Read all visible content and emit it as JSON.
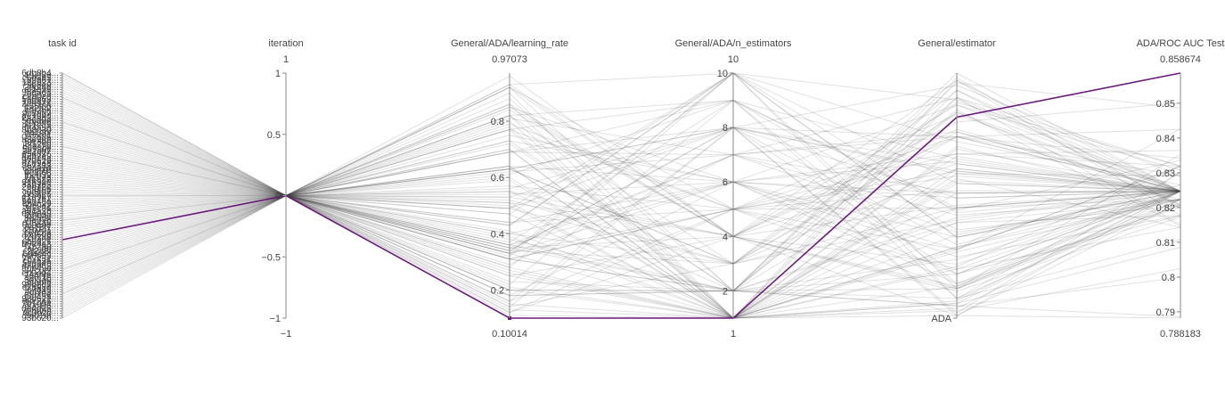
{
  "colors": {
    "highlight": "#6a1b7a",
    "line": "#444444"
  },
  "chart_data": {
    "type": "parallel_coordinates",
    "title": "",
    "axes": [
      {
        "key": "task_id",
        "label": "task id",
        "type": "categorical",
        "ticks": [
          "6db8b4...",
          "197f89...",
          "c5d8a5...",
          "8ffa81...",
          "17e923...",
          "79e5e0...",
          "29df4d...",
          "af1e98...",
          "98d3e1...",
          "0f7f99...",
          "c2a0cd...",
          "530b69...",
          "1b0a7e...",
          "2e8124...",
          "e55f85...",
          "6a2a4f...",
          "49f2ba...",
          "9c38d7...",
          "ae1d4d...",
          "2a3ad3...",
          "5e6a8e...",
          "19e9fd...",
          "c41e35...",
          "fe4a5e...",
          "8b8e30...",
          "ba1cbf...",
          "765bf1...",
          "0e2a86...",
          "a3e2ab...",
          "f0c3be...",
          "8f12cd...",
          "bc9c2d...",
          "5d9a9c...",
          "3d1cb7...",
          "e54876...",
          "42b7e9...",
          "d0de4a...",
          "a70e29...",
          "fcd9a8...",
          "8e7133...",
          "c8c91a...",
          "a5b91f...",
          "9e1f68...",
          "fbeb39...",
          "7a3f7a...",
          "5f1a82...",
          "91b3a0...",
          "38b7e5...",
          "2ed72e...",
          "3f8f0b...",
          "c0a1b7...",
          "5e3fe6...",
          "e1e9e7...",
          "71d7e2...",
          "90a48a...",
          "8b4c29...",
          "52c0d2...",
          "1f6c36...",
          "a61a2b...",
          "d45e49...",
          "2cfe4c...",
          "8d4a2f...",
          "7fa07b...",
          "cd84a6...",
          "0c0e4e...",
          "3a18f7...",
          "41b7c1...",
          "e7a5f3...",
          "a4d60b...",
          "f2b1a8...",
          "91fc0e...",
          "6c5d21...",
          "b0e4a8...",
          "f7c2a0...",
          "2e2cad...",
          "2f2a3f...",
          "6d4c4c...",
          "6e0b53...",
          "7e7c31...",
          "c0ca35...",
          "5cd34b...",
          "d73b62...",
          "a0b49d...",
          "77c0ef...",
          "ed94d4...",
          "7a4f4e...",
          "aa0f1e...",
          "3ef3a0...",
          "3cabfb...",
          "98b2d3...",
          "c1a98e...",
          "fc7b18...",
          "4cf7d3...",
          "e96f0e...",
          "cdf43a...",
          "98d621...",
          "08c2a6...",
          "7b1054...",
          "e0c1f6...",
          "0e4d25...",
          "7ebb8b...",
          "4c3b2c...",
          "3a01af...",
          "93b620..."
        ]
      },
      {
        "key": "iteration",
        "label": "iteration",
        "type": "numeric",
        "range": [
          -1,
          1
        ],
        "range_labels": [
          "1",
          "−1"
        ],
        "ticks": [
          "1",
          "0.5",
          "0",
          "−0.5",
          "−1"
        ],
        "tick_values": [
          1,
          0.5,
          0,
          -0.5,
          -1
        ]
      },
      {
        "key": "learning_rate",
        "label": "General/ADA/learning_rate",
        "type": "numeric",
        "range": [
          0.10014,
          0.97073
        ],
        "range_labels": [
          "0.97073",
          "0.10014"
        ],
        "ticks": [
          "0.8",
          "0.6",
          "0.4",
          "0.2"
        ],
        "tick_values": [
          0.8,
          0.6,
          0.4,
          0.2
        ]
      },
      {
        "key": "n_estimators",
        "label": "General/ADA/n_estimators",
        "type": "numeric",
        "range": [
          1,
          10
        ],
        "range_labels": [
          "10",
          "1"
        ],
        "ticks": [
          "10",
          "8",
          "6",
          "4",
          "2"
        ],
        "tick_values": [
          10,
          8,
          6,
          4,
          2
        ]
      },
      {
        "key": "estimator",
        "label": "General/estimator",
        "type": "categorical",
        "range_labels": [
          "",
          ""
        ],
        "ticks": [
          "ADA"
        ]
      },
      {
        "key": "roc_auc",
        "label": "ADA/ROC AUC Test",
        "type": "numeric",
        "range": [
          0.788183,
          0.858674
        ],
        "range_labels": [
          "0.858674",
          "0.788183"
        ],
        "ticks": [
          "0.85",
          "0.84",
          "0.83",
          "0.82",
          "0.81",
          "0.8",
          "0.79"
        ],
        "tick_values": [
          0.85,
          0.84,
          0.83,
          0.82,
          0.81,
          0.8,
          0.79
        ]
      }
    ],
    "records": [
      [
        0.0,
        0,
        0.31,
        2,
        0.0,
        0.8247
      ],
      [
        0.0097,
        0,
        0.47,
        10,
        0.28,
        0.8265
      ],
      [
        0.0194,
        0,
        0.79,
        5,
        0.72,
        0.8319
      ],
      [
        0.0291,
        0,
        0.36,
        2,
        0.34,
        0.8247
      ],
      [
        0.0388,
        0,
        0.22,
        9,
        0.64,
        0.8207
      ],
      [
        0.0485,
        0,
        0.69,
        8,
        0.05,
        0.8291
      ],
      [
        0.0583,
        0,
        0.44,
        6,
        0.82,
        0.8177
      ],
      [
        0.068,
        0,
        0.36,
        6,
        0.75,
        0.8177
      ],
      [
        0.0777,
        0,
        0.63,
        8,
        0.99,
        0.8215
      ],
      [
        0.0874,
        0,
        0.2,
        2,
        0.15,
        0.8147
      ],
      [
        0.0971,
        0,
        0.92,
        5,
        0.88,
        0.8353
      ],
      [
        0.1068,
        0,
        0.4,
        6,
        0.86,
        0.8247
      ],
      [
        0.1165,
        0,
        0.34,
        8,
        0.7,
        0.8265
      ],
      [
        0.1262,
        0,
        0.93,
        4,
        0.13,
        0.8307
      ],
      [
        0.1359,
        0,
        0.49,
        10,
        0.57,
        0.8247
      ],
      [
        0.1456,
        0,
        0.37,
        9,
        0.92,
        0.8223
      ],
      [
        0.1553,
        0,
        0.88,
        2,
        0.1,
        0.8319
      ],
      [
        0.165,
        0,
        0.35,
        4,
        0.89,
        0.8173
      ],
      [
        0.1748,
        0,
        0.85,
        6,
        0.33,
        0.8364
      ],
      [
        0.1845,
        0,
        0.11,
        1,
        0.8,
        0.8143
      ],
      [
        0.1942,
        0,
        0.43,
        10,
        0.45,
        0.8247
      ],
      [
        0.2039,
        0,
        0.73,
        2,
        0.02,
        0.8199
      ],
      [
        0.2136,
        0,
        0.84,
        4,
        0.99,
        0.8247
      ],
      [
        0.2233,
        0,
        0.35,
        2,
        0.59,
        0.8247
      ],
      [
        0.233,
        0,
        0.81,
        7,
        0.1,
        0.8151
      ],
      [
        0.2427,
        0,
        0.51,
        1,
        0.94,
        0.8247
      ],
      [
        0.2524,
        0,
        0.7,
        1,
        0.96,
        0.8223
      ],
      [
        0.2621,
        0,
        0.82,
        3,
        0.24,
        0.8247
      ],
      [
        0.2718,
        0,
        0.31,
        5,
        0.55,
        0.8223
      ],
      [
        0.2816,
        0,
        0.16,
        5,
        0.8,
        0.8247
      ],
      [
        0.2913,
        0,
        0.7,
        1,
        0.49,
        0.8247
      ],
      [
        0.301,
        0,
        0.27,
        1,
        0.72,
        0.8319
      ],
      [
        0.3107,
        0,
        0.92,
        4,
        0.78,
        0.8247
      ],
      [
        0.3204,
        0,
        0.34,
        8,
        0.37,
        0.8247
      ],
      [
        0.3301,
        0,
        0.85,
        4,
        0.26,
        0.8425
      ],
      [
        0.3398,
        0,
        0.77,
        1,
        0.43,
        0.8143
      ],
      [
        0.3495,
        0,
        0.55,
        4,
        0.03,
        0.8177
      ],
      [
        0.3592,
        0,
        0.69,
        9,
        0.56,
        0.8336
      ],
      [
        0.369,
        0,
        0.64,
        1,
        0.3,
        0.8223
      ],
      [
        0.3787,
        0,
        0.21,
        1,
        0.39,
        0.8247
      ],
      [
        0.3884,
        0,
        0.63,
        8,
        0.82,
        0.8247
      ],
      [
        0.3981,
        0,
        0.33,
        1,
        0.03,
        0.8247
      ],
      [
        0.4078,
        0,
        0.73,
        6,
        0.72,
        0.8426
      ],
      [
        0.4175,
        0,
        0.93,
        10,
        0.92,
        0.8301
      ],
      [
        0.4272,
        0,
        0.49,
        8,
        0.4,
        0.8247
      ],
      [
        0.4369,
        0,
        0.38,
        2,
        0.16,
        0.8247
      ],
      [
        0.4466,
        0,
        0.33,
        6,
        0.67,
        0.8247
      ],
      [
        0.4563,
        0,
        0.54,
        6,
        0.36,
        0.8247
      ],
      [
        0.466,
        0,
        0.49,
        3,
        0.16,
        0.8207
      ],
      [
        0.4757,
        0,
        0.52,
        3,
        0.39,
        0.8247
      ],
      [
        0.4854,
        0,
        0.28,
        1,
        0.79,
        0.8319
      ],
      [
        0.4951,
        0,
        0.4,
        3,
        0.07,
        0.8247
      ],
      [
        0.5049,
        0,
        0.57,
        5,
        0.33,
        0.8319
      ],
      [
        0.5146,
        0,
        0.75,
        6,
        0.49,
        0.8247
      ],
      [
        0.5243,
        0,
        0.12,
        5,
        0.4,
        0.8247
      ],
      [
        0.534,
        0,
        0.14,
        8,
        0.98,
        0.8301
      ],
      [
        0.5437,
        0,
        0.35,
        7,
        0.26,
        0.8247
      ],
      [
        0.5534,
        0,
        0.15,
        1,
        0.73,
        0.8223
      ],
      [
        0.5631,
        0,
        0.33,
        5,
        0.42,
        0.8247
      ],
      [
        0.5728,
        0,
        0.13,
        1,
        0.87,
        0.8207
      ],
      [
        0.5825,
        0,
        0.28,
        10,
        0.67,
        0.8223
      ],
      [
        0.5922,
        0,
        0.77,
        9,
        0.55,
        0.8247
      ],
      [
        0.6019,
        0,
        0.86,
        1,
        0.71,
        0.8223
      ],
      [
        0.6117,
        0,
        0.29,
        7,
        0.49,
        0.8247
      ],
      [
        0.6214,
        0,
        0.64,
        6,
        0.13,
        0.8247
      ],
      [
        0.6311,
        0,
        0.92,
        2,
        0.61,
        0.8223
      ],
      [
        0.6408,
        0,
        0.82,
        9,
        0.35,
        0.8247
      ],
      [
        0.6505,
        0,
        0.33,
        10,
        0.11,
        0.8247
      ],
      [
        0.6602,
        0,
        0.2,
        1,
        0.41,
        0.8291
      ],
      [
        0.6699,
        0,
        0.61,
        9,
        0.86,
        0.8207
      ],
      [
        0.6796,
        0,
        0.63,
        3,
        0.6,
        0.8247
      ],
      [
        0.6893,
        0,
        0.53,
        8,
        0.26,
        0.8291
      ],
      [
        0.699,
        0,
        0.64,
        1,
        0.61,
        0.8177
      ],
      [
        0.7087,
        0,
        0.6,
        1,
        0.1,
        0.8247
      ],
      [
        0.7184,
        0,
        0.8,
        1,
        0.71,
        0.8247
      ],
      [
        0.7282,
        0,
        0.14,
        3,
        0.55,
        0.8247
      ],
      [
        0.7379,
        0,
        0.56,
        8,
        0.51,
        0.8247
      ],
      [
        0.7476,
        0,
        0.51,
        4,
        0.88,
        0.8247
      ],
      [
        0.7573,
        0,
        0.69,
        7,
        0.24,
        0.8247
      ],
      [
        0.767,
        0,
        0.36,
        7,
        0.58,
        0.8223
      ],
      [
        0.7767,
        0,
        0.23,
        2,
        0.76,
        0.8247
      ],
      [
        0.7864,
        0,
        0.31,
        5,
        0.26,
        0.8247
      ],
      [
        0.7961,
        0,
        0.63,
        3,
        0.12,
        0.8319
      ],
      [
        0.8058,
        0,
        0.47,
        1,
        0.93,
        0.8247
      ],
      [
        0.8155,
        0,
        0.26,
        1,
        0.55,
        0.8247
      ],
      [
        0.8252,
        0,
        0.62,
        7,
        0.65,
        0.8223
      ],
      [
        0.835,
        0,
        0.34,
        3,
        0.26,
        0.8342
      ],
      [
        0.8447,
        0,
        0.18,
        2,
        0.82,
        0.8247
      ],
      [
        0.8544,
        0,
        0.78,
        1,
        0.45,
        0.8247
      ],
      [
        0.8641,
        0,
        0.18,
        6,
        0.51,
        0.8247
      ],
      [
        0.8738,
        0,
        0.32,
        10,
        0.67,
        0.8247
      ],
      [
        0.8835,
        0,
        0.41,
        1,
        0.07,
        0.8207
      ],
      [
        0.8932,
        0,
        0.25,
        1,
        0.66,
        0.8247
      ],
      [
        0.9029,
        0,
        0.16,
        8,
        0.41,
        0.8247
      ],
      [
        0.9126,
        0,
        0.31,
        2,
        0.88,
        0.8203
      ],
      [
        0.9223,
        0,
        0.25,
        4,
        0.54,
        0.8247
      ],
      [
        0.932,
        0,
        0.43,
        10,
        0.88,
        0.8223
      ],
      [
        0.9417,
        0,
        0.53,
        4,
        0.87,
        0.8247
      ],
      [
        0.9515,
        0,
        0.86,
        4,
        0.37,
        0.8247
      ],
      [
        0.9612,
        0,
        0.12,
        4,
        0.23,
        0.8247
      ],
      [
        0.9709,
        0,
        0.44,
        5,
        0.17,
        0.8247
      ],
      [
        0.9806,
        0,
        0.59,
        1,
        0.31,
        0.8247
      ],
      [
        0.9903,
        0,
        0.39,
        1,
        0.44,
        0.8247
      ],
      [
        1.0,
        0,
        0.77,
        5,
        0.48,
        0.8247
      ],
      [
        0.0,
        0,
        0.9,
        1,
        0.94,
        0.8086
      ],
      [
        0.5,
        0,
        0.55,
        2,
        0.95,
        0.7886
      ],
      [
        0.8,
        0,
        0.82,
        1,
        0.99,
        0.7882
      ],
      [
        0.3,
        0,
        0.96,
        4,
        0.2,
        0.8501
      ],
      [
        0.6,
        0,
        0.72,
        2,
        0.92,
        0.8107
      ],
      [
        0.2,
        0,
        0.5,
        1,
        0.97,
        0.8024
      ],
      [
        0.9,
        0,
        0.2,
        2,
        0.04,
        0.8486
      ],
      [
        0.1,
        0,
        0.18,
        2,
        0.95,
        0.7999
      ]
    ],
    "highlight": [
      0.68,
      0,
      0.10014,
      1,
      0.18,
      0.858674
    ]
  }
}
